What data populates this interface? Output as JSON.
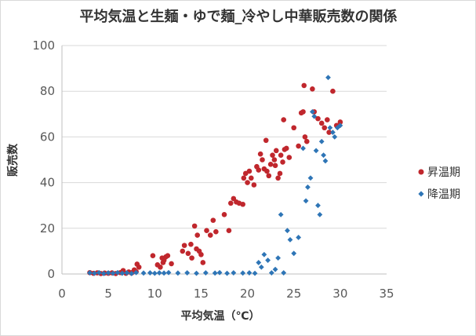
{
  "chart_data": {
    "type": "scatter",
    "title": "平均気温と生麺・ゆで麺_冷やし中華販売数の関係",
    "xlabel": "平均気温（℃）",
    "ylabel": "販売数",
    "xlim": [
      0,
      35
    ],
    "ylim": [
      0,
      100
    ],
    "xticks": [
      "0",
      "5",
      "10",
      "15",
      "20",
      "25",
      "30",
      "35"
    ],
    "yticks": [
      "0",
      "20",
      "40",
      "60",
      "80",
      "100"
    ],
    "grid": "horizontal",
    "legend_position": "right",
    "series": [
      {
        "name": "昇温期",
        "color": "#c0272d",
        "marker": "circle",
        "points": [
          [
            3.0,
            0.6
          ],
          [
            3.4,
            0.3
          ],
          [
            3.8,
            0.5
          ],
          [
            4.2,
            0.2
          ],
          [
            4.6,
            0.4
          ],
          [
            5.0,
            0.3
          ],
          [
            5.4,
            0.5
          ],
          [
            5.8,
            0.2
          ],
          [
            6.3,
            0.6
          ],
          [
            6.6,
            1.5
          ],
          [
            6.9,
            0.3
          ],
          [
            7.2,
            0.9
          ],
          [
            7.5,
            0.4
          ],
          [
            7.8,
            1.8
          ],
          [
            8.0,
            1.0
          ],
          [
            8.3,
            3.0
          ],
          [
            8.1,
            4.3
          ],
          [
            7.6,
            0.7
          ],
          [
            9.8,
            8.0
          ],
          [
            10.3,
            4.0
          ],
          [
            10.6,
            3.0
          ],
          [
            10.9,
            5.0
          ],
          [
            11.0,
            6.0
          ],
          [
            11.2,
            7.5
          ],
          [
            11.4,
            8.0
          ],
          [
            10.8,
            7.0
          ],
          [
            11.8,
            4.5
          ],
          [
            13.0,
            10.0
          ],
          [
            13.2,
            12.5
          ],
          [
            13.6,
            9.0
          ],
          [
            13.9,
            13.0
          ],
          [
            14.0,
            7.0
          ],
          [
            14.3,
            21.0
          ],
          [
            14.5,
            11.0
          ],
          [
            14.8,
            10.0
          ],
          [
            14.6,
            17.0
          ],
          [
            15.0,
            8.5
          ],
          [
            15.2,
            5.0
          ],
          [
            15.6,
            19.0
          ],
          [
            16.0,
            17.0
          ],
          [
            16.3,
            23.5
          ],
          [
            16.6,
            18.5
          ],
          [
            17.5,
            26.0
          ],
          [
            18.0,
            19.0
          ],
          [
            18.2,
            31.0
          ],
          [
            18.5,
            33.0
          ],
          [
            18.8,
            31.5
          ],
          [
            19.1,
            31.0
          ],
          [
            19.5,
            30.5
          ],
          [
            19.6,
            42.0
          ],
          [
            19.8,
            44.0
          ],
          [
            20.0,
            40.0
          ],
          [
            20.2,
            45.0
          ],
          [
            20.4,
            42.0
          ],
          [
            20.7,
            39.0
          ],
          [
            21.0,
            47.0
          ],
          [
            21.2,
            45.5
          ],
          [
            21.4,
            52.5
          ],
          [
            21.6,
            50.0
          ],
          [
            21.8,
            46.0
          ],
          [
            22.0,
            58.5
          ],
          [
            22.1,
            45.0
          ],
          [
            22.3,
            43.0
          ],
          [
            22.5,
            48.0
          ],
          [
            22.7,
            52.0
          ],
          [
            22.9,
            50.0
          ],
          [
            23.0,
            47.5
          ],
          [
            23.1,
            54.0
          ],
          [
            23.3,
            42.0
          ],
          [
            23.5,
            44.0
          ],
          [
            23.6,
            52.0
          ],
          [
            23.8,
            49.0
          ],
          [
            24.0,
            54.5
          ],
          [
            24.2,
            55.0
          ],
          [
            24.5,
            51.0
          ],
          [
            25.0,
            64.0
          ],
          [
            23.9,
            67.5
          ],
          [
            25.5,
            56.0
          ],
          [
            25.8,
            70.5
          ],
          [
            26.0,
            71.0
          ],
          [
            26.2,
            60.0
          ],
          [
            26.4,
            58.0
          ],
          [
            26.1,
            82.5
          ],
          [
            27.0,
            81.0
          ],
          [
            27.2,
            71.0
          ],
          [
            27.6,
            68.0
          ],
          [
            28.0,
            66.0
          ],
          [
            28.3,
            64.0
          ],
          [
            28.6,
            67.5
          ],
          [
            28.8,
            62.0
          ],
          [
            29.2,
            80.0
          ],
          [
            29.6,
            65.0
          ],
          [
            30.0,
            66.5
          ]
        ]
      },
      {
        "name": "降温期",
        "color": "#2e75b6",
        "marker": "diamond",
        "points": [
          [
            3.0,
            0.5
          ],
          [
            3.5,
            0.3
          ],
          [
            4.0,
            0.6
          ],
          [
            4.5,
            0.2
          ],
          [
            5.0,
            0.5
          ],
          [
            5.5,
            0.3
          ],
          [
            6.0,
            0.6
          ],
          [
            6.5,
            0.3
          ],
          [
            7.0,
            0.5
          ],
          [
            7.5,
            0.2
          ],
          [
            8.0,
            0.6
          ],
          [
            8.8,
            0.4
          ],
          [
            9.5,
            0.5
          ],
          [
            10.0,
            0.3
          ],
          [
            10.5,
            0.5
          ],
          [
            11.0,
            0.4
          ],
          [
            11.5,
            0.6
          ],
          [
            12.5,
            0.4
          ],
          [
            13.5,
            0.5
          ],
          [
            14.5,
            0.3
          ],
          [
            15.5,
            0.5
          ],
          [
            16.5,
            0.4
          ],
          [
            17.0,
            0.6
          ],
          [
            17.8,
            0.3
          ],
          [
            18.5,
            0.5
          ],
          [
            19.5,
            0.4
          ],
          [
            20.2,
            0.5
          ],
          [
            20.8,
            0.3
          ],
          [
            21.2,
            5.0
          ],
          [
            21.5,
            3.0
          ],
          [
            21.8,
            8.5
          ],
          [
            22.2,
            6.0
          ],
          [
            22.6,
            0.5
          ],
          [
            23.0,
            2.0
          ],
          [
            23.3,
            7.0
          ],
          [
            23.6,
            26.0
          ],
          [
            23.9,
            0.5
          ],
          [
            24.3,
            19.0
          ],
          [
            24.6,
            15.0
          ],
          [
            25.0,
            9.0
          ],
          [
            25.5,
            16.0
          ],
          [
            26.0,
            55.0
          ],
          [
            26.3,
            32.0
          ],
          [
            26.5,
            38.0
          ],
          [
            26.8,
            42.0
          ],
          [
            27.0,
            71.0
          ],
          [
            27.2,
            69.0
          ],
          [
            27.4,
            54.0
          ],
          [
            27.6,
            30.0
          ],
          [
            27.8,
            26.0
          ],
          [
            28.0,
            58.0
          ],
          [
            28.2,
            52.0
          ],
          [
            28.4,
            49.5
          ],
          [
            28.7,
            86.0
          ],
          [
            28.9,
            64.0
          ],
          [
            29.2,
            62.0
          ],
          [
            29.4,
            60.0
          ],
          [
            29.7,
            64.0
          ],
          [
            30.0,
            65.0
          ]
        ]
      }
    ]
  }
}
